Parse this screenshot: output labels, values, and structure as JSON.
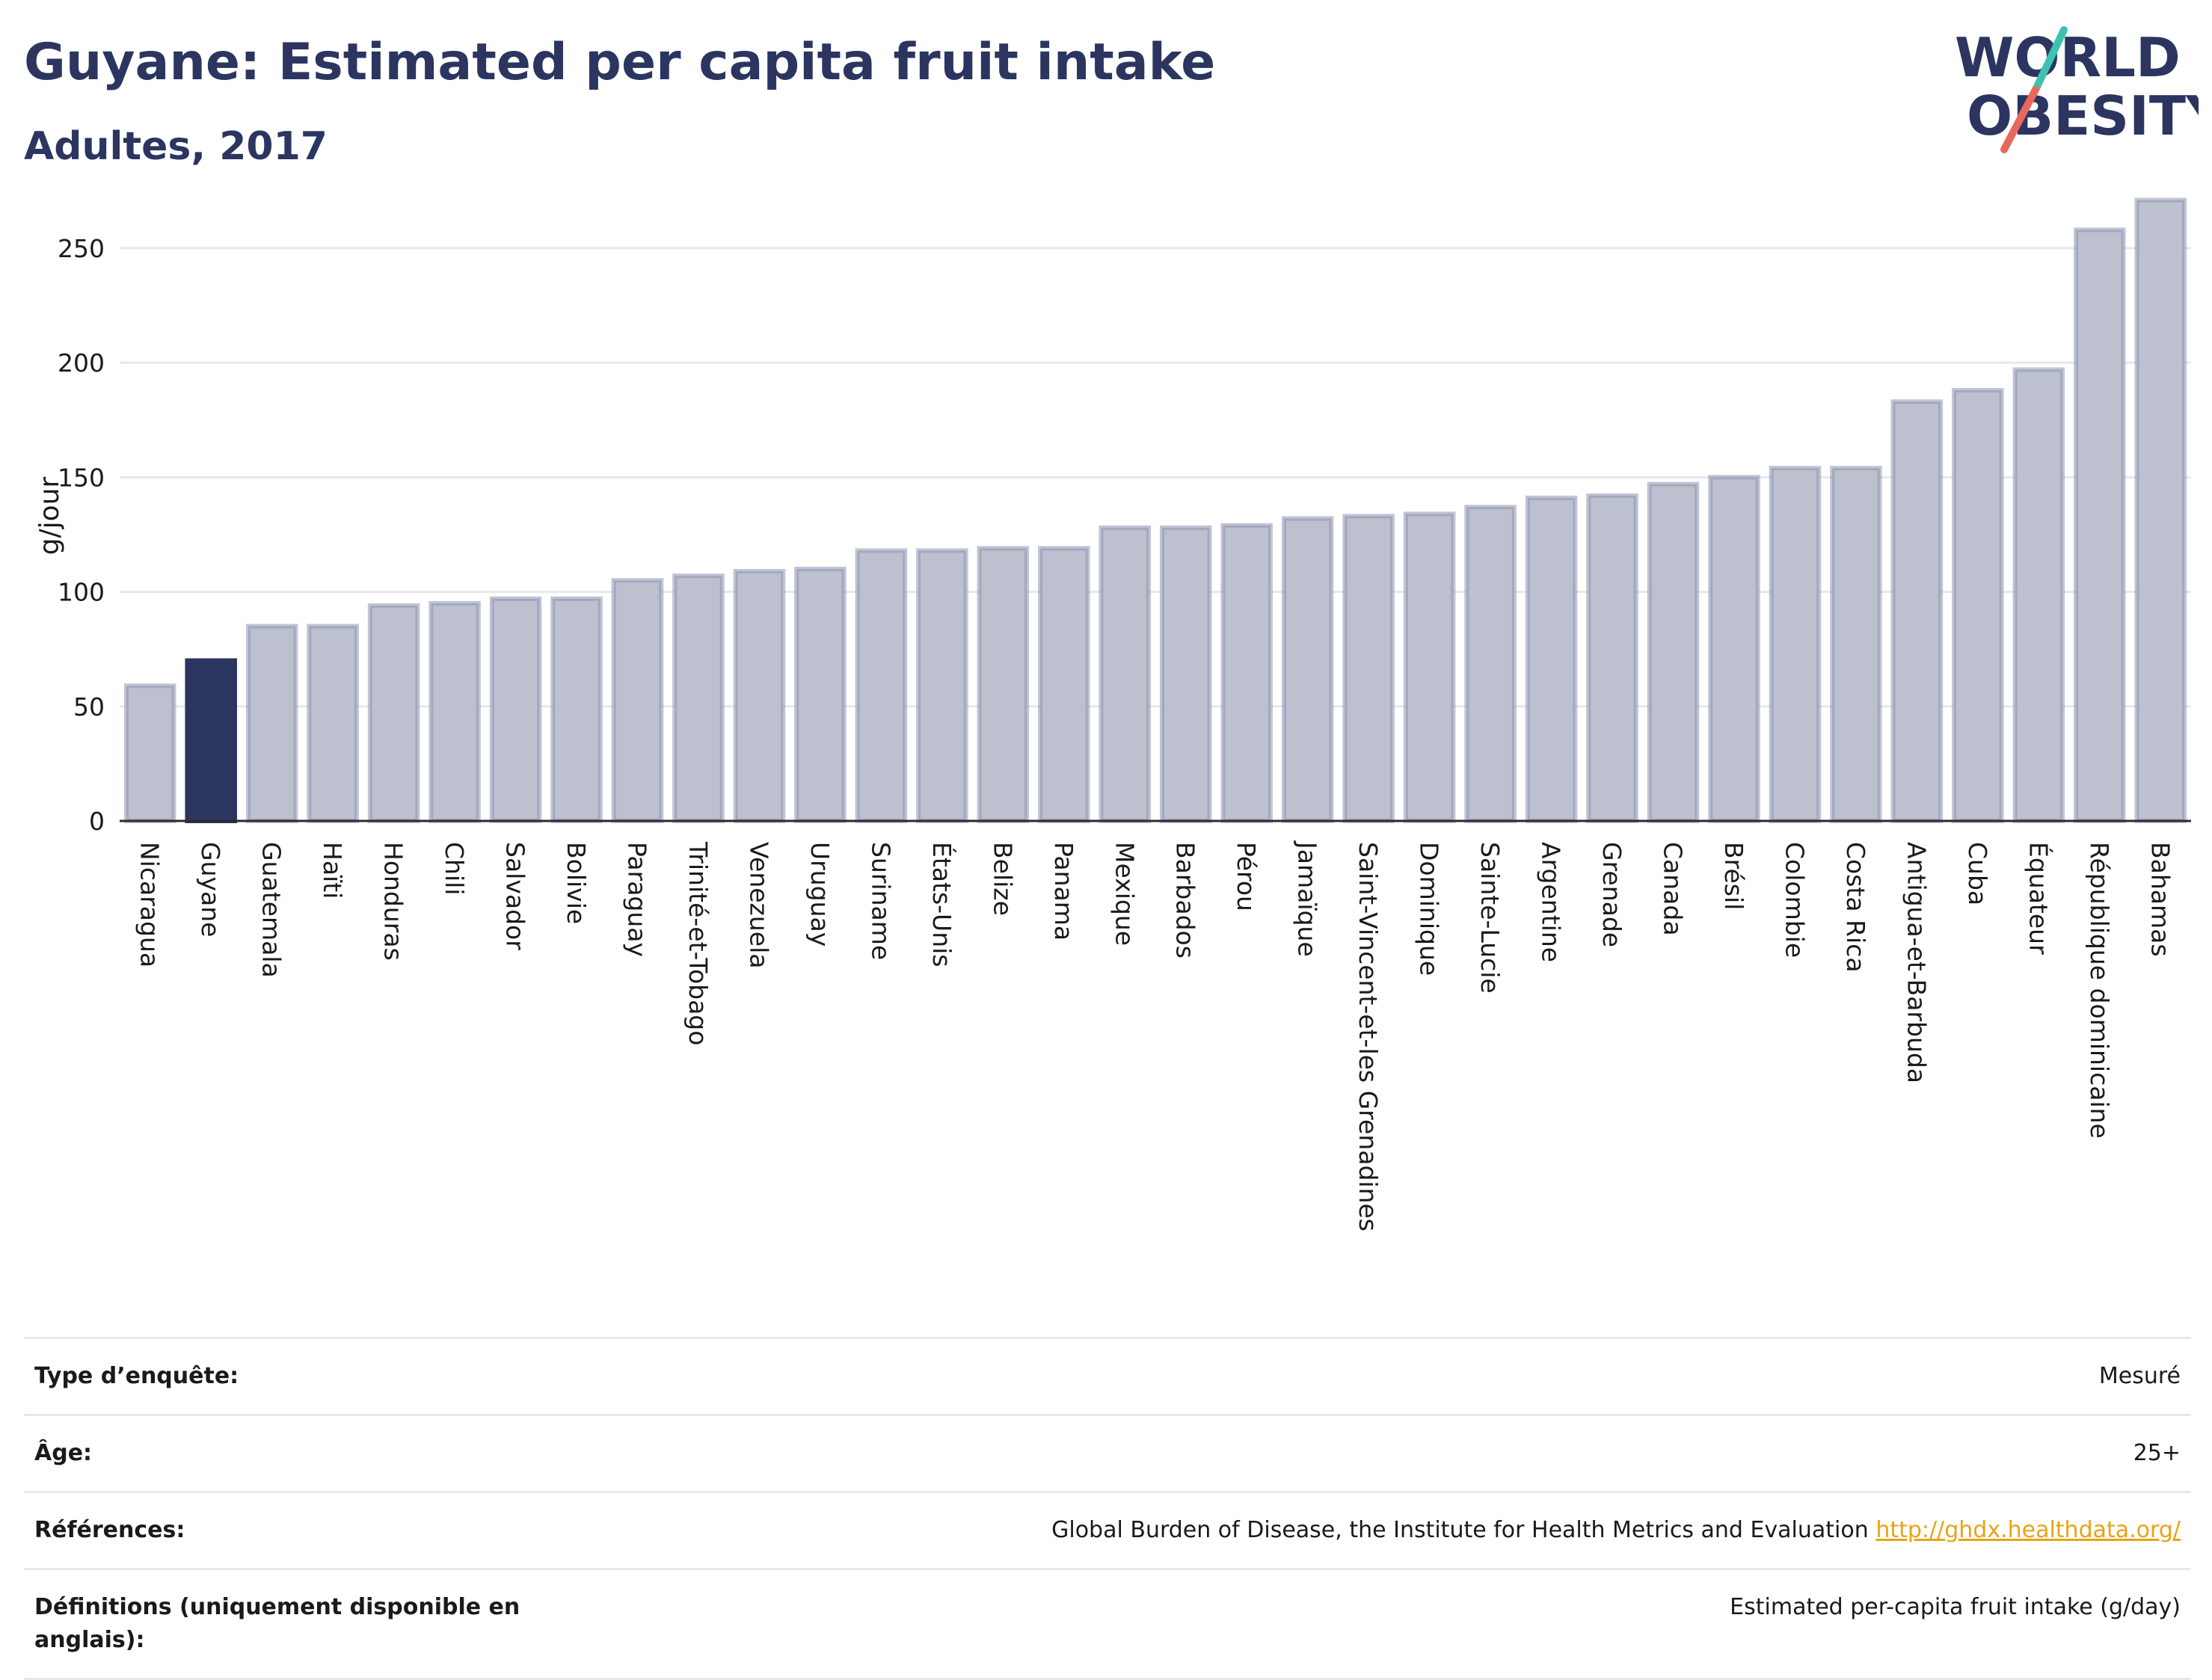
{
  "header": {
    "title": "Guyane: Estimated per capita fruit intake",
    "subtitle": "Adultes, 2017"
  },
  "logo": {
    "line1": "WORLD",
    "line2": "OBESITY",
    "icon": "world-obesity-slash-logo"
  },
  "colors": {
    "highlight": "#2b3560",
    "bar": "#bcc0cf",
    "bar_stroke": "#8e94b0",
    "grid": "#e6e8ee",
    "logo_teal": "#3fc1b0",
    "logo_coral": "#e8685a",
    "link": "#e8a317"
  },
  "chart_data": {
    "type": "bar",
    "ylabel": "g/jour",
    "xlabel": "",
    "ylim": [
      0,
      280
    ],
    "yticks": [
      0,
      50,
      100,
      150,
      200,
      250
    ],
    "grid": true,
    "highlight": "Guyane",
    "categories": [
      "Nicaragua",
      "Guyane",
      "Guatemala",
      "Haïti",
      "Honduras",
      "Chili",
      "Salvador",
      "Bolivie",
      "Paraguay",
      "Trinité-et-Tobago",
      "Venezuela",
      "Uruguay",
      "Suriname",
      "États-Unis",
      "Belize",
      "Panama",
      "Mexique",
      "Barbados",
      "Pérou",
      "Jamaïque",
      "Saint-Vincent-et-les Grenadines",
      "Dominique",
      "Sainte-Lucie",
      "Argentine",
      "Grenade",
      "Canada",
      "Brésil",
      "Colombie",
      "Costa Rica",
      "Antigua-et-Barbuda",
      "Cuba",
      "Équateur",
      "République dominicaine",
      "Bahamas"
    ],
    "values": [
      59,
      70,
      85,
      85,
      94,
      95,
      97,
      97,
      105,
      107,
      109,
      110,
      118,
      118,
      119,
      119,
      128,
      128,
      129,
      132,
      133,
      134,
      137,
      141,
      142,
      147,
      150,
      154,
      154,
      183,
      188,
      197,
      258,
      271
    ]
  },
  "info": [
    {
      "label": "Type d’enquête:",
      "value": "Mesuré"
    },
    {
      "label": "Âge:",
      "value": "25+"
    },
    {
      "label": "Références:",
      "value": "Global Burden of Disease, the Institute for Health Metrics and Evaluation",
      "link": "http://ghdx.healthdata.org/"
    },
    {
      "label": "Définitions (uniquement disponible en anglais):",
      "value": "Estimated per-capita fruit intake (g/day)"
    }
  ]
}
